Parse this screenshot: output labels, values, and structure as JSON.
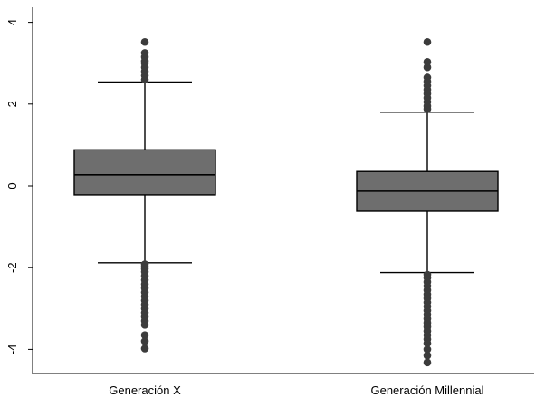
{
  "chart_data": {
    "type": "box",
    "title": "",
    "xlabel": "",
    "ylabel": "",
    "ylim": [
      -4.4,
      4.3
    ],
    "yticks": [
      -4,
      -2,
      0,
      2,
      4
    ],
    "ytick_labels": [
      "-4",
      "-2",
      "0",
      "2",
      "4"
    ],
    "grid": false,
    "legend": "none",
    "box_color": "#6e6e6e",
    "outlier_color": "#3c3c3c",
    "categories": [
      "Generación X",
      "Generación Millennial"
    ],
    "boxes": [
      {
        "label": "Generación X",
        "whisker_low": -1.88,
        "q1": -0.22,
        "median": 0.27,
        "q3": 0.88,
        "whisker_high": 2.54,
        "outliers_high": [
          2.6,
          2.7,
          2.8,
          2.9,
          3.0,
          3.05,
          3.15,
          3.25,
          3.52
        ],
        "outliers_low": [
          -1.92,
          -1.97,
          -2.03,
          -2.1,
          -2.2,
          -2.3,
          -2.4,
          -2.5,
          -2.6,
          -2.7,
          -2.8,
          -2.9,
          -3.0,
          -3.1,
          -3.2,
          -3.3,
          -3.4,
          -3.65,
          -3.8,
          -3.98
        ]
      },
      {
        "label": "Generación Millennial",
        "whisker_low": -2.12,
        "q1": -0.62,
        "median": -0.13,
        "q3": 0.35,
        "whisker_high": 1.8,
        "outliers_high": [
          1.88,
          1.95,
          2.05,
          2.15,
          2.25,
          2.35,
          2.45,
          2.55,
          2.65,
          2.9,
          3.03,
          3.52
        ],
        "outliers_low": [
          -2.17,
          -2.25,
          -2.35,
          -2.45,
          -2.55,
          -2.65,
          -2.75,
          -2.85,
          -2.95,
          -3.05,
          -3.15,
          -3.25,
          -3.35,
          -3.45,
          -3.55,
          -3.65,
          -3.75,
          -3.85,
          -4.0,
          -4.15,
          -4.32
        ]
      }
    ]
  }
}
